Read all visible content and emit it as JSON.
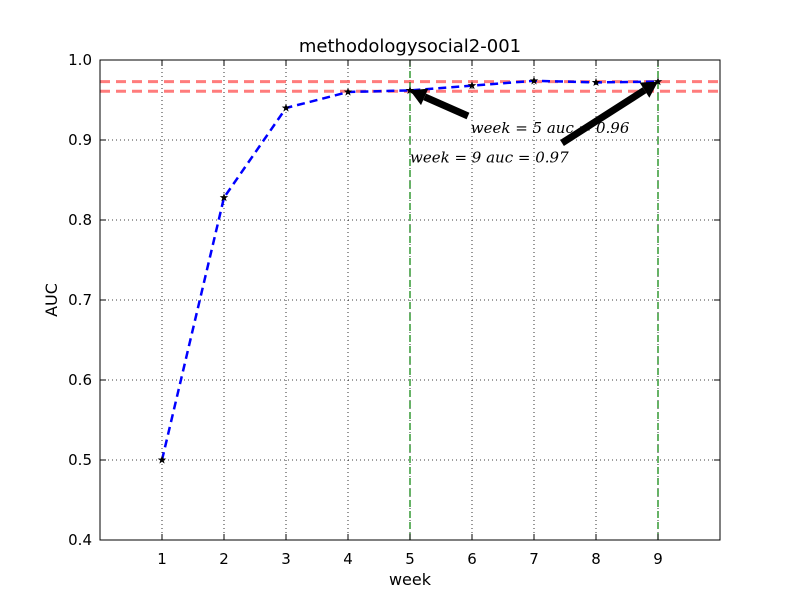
{
  "chart_data": {
    "type": "line",
    "title": "methodologysocial2-001",
    "xlabel": "week",
    "ylabel": "AUC",
    "xlim": [
      0,
      10
    ],
    "ylim": [
      0.4,
      1.0
    ],
    "xticks": [
      1,
      2,
      3,
      4,
      5,
      6,
      7,
      8,
      9
    ],
    "yticks": [
      0.4,
      0.5,
      0.6,
      0.7,
      0.8,
      0.9,
      1.0
    ],
    "grid": true,
    "x": [
      1,
      2,
      3,
      4,
      5,
      6,
      7,
      8,
      9
    ],
    "series": [
      {
        "values": [
          0.5,
          0.828,
          0.94,
          0.96,
          0.962,
          0.968,
          0.974,
          0.972,
          0.973
        ],
        "color": "#0000ff",
        "marker": "star",
        "marker_color": "#000000",
        "line_style": "dashed"
      }
    ],
    "reference_lines": {
      "horizontal": [
        {
          "y": 0.973,
          "color": "#ff6666",
          "style": "dashed"
        },
        {
          "y": 0.961,
          "color": "#ff6666",
          "style": "dashed"
        }
      ],
      "vertical": [
        {
          "x": 5,
          "color": "#008000",
          "style": "dashed"
        },
        {
          "x": 9,
          "color": "#008000",
          "style": "dashed"
        }
      ]
    },
    "annotations": [
      {
        "text": "week = 5  auc = 0.96",
        "point": {
          "x": 5,
          "y": 0.962
        },
        "text_at": {
          "x": 5.98,
          "y": 0.915
        }
      },
      {
        "text": "week = 9  auc = 0.97",
        "point": {
          "x": 9,
          "y": 0.973
        },
        "text_at": {
          "x": 5.0,
          "y": 0.878
        }
      }
    ]
  }
}
